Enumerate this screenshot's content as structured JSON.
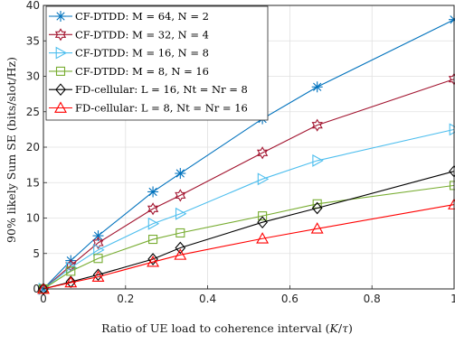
{
  "chart_data": {
    "type": "line",
    "xlabel": "Ratio of UE load to coherence interval (K/τ)",
    "ylabel": "90% likely Sum SE (bits/slot/Hz)",
    "xlim": [
      0,
      1
    ],
    "ylim": [
      0,
      40
    ],
    "xticks": [
      "0",
      "0.2",
      "0.4",
      "0.6",
      "0.8",
      "1"
    ],
    "yticks": [
      "0",
      "5",
      "10",
      "15",
      "20",
      "25",
      "30",
      "35",
      "40"
    ],
    "grid": true,
    "legend_position": "top-left",
    "x": [
      0,
      0.0667,
      0.1333,
      0.2667,
      0.3333,
      0.5333,
      0.6667,
      1.0
    ],
    "series": [
      {
        "name": "CF-DTDD: M = 64, N = 2",
        "color": "#0072BD",
        "marker": "asterisk",
        "values": [
          0,
          4.0,
          7.5,
          13.7,
          16.3,
          24.0,
          28.5,
          38.0
        ]
      },
      {
        "name": "CF-DTDD: M = 32, N = 4",
        "color": "#A2142F",
        "marker": "hexagram",
        "values": [
          0,
          3.3,
          6.5,
          11.3,
          13.2,
          19.2,
          23.1,
          29.6
        ]
      },
      {
        "name": "CF-DTDD: M = 16, N = 8",
        "color": "#4DBEEE",
        "marker": "triangle-right",
        "values": [
          0,
          3.0,
          5.5,
          9.2,
          10.6,
          15.5,
          18.1,
          22.5
        ]
      },
      {
        "name": "CF-DTDD: M = 8, N = 16",
        "color": "#77AC30",
        "marker": "square",
        "values": [
          0,
          2.5,
          4.3,
          7.0,
          7.9,
          10.3,
          12.0,
          14.6
        ]
      },
      {
        "name": "FD-cellular: L = 16, Nt = Nr = 8",
        "color": "#000000",
        "marker": "diamond",
        "values": [
          0,
          1.0,
          2.0,
          4.2,
          5.8,
          9.4,
          11.4,
          16.6
        ]
      },
      {
        "name": "FD-cellular: L = 8, Nt = Nr = 16",
        "color": "#FF0000",
        "marker": "triangle-up",
        "values": [
          0,
          0.9,
          1.7,
          3.8,
          4.8,
          7.1,
          8.5,
          11.9
        ]
      }
    ]
  }
}
